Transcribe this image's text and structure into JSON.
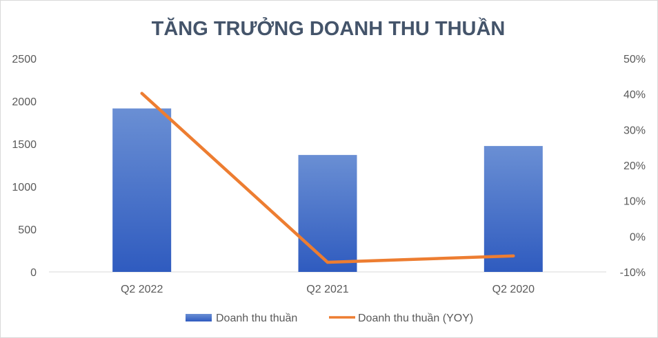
{
  "chart_data": {
    "type": "bar",
    "title": "TĂNG TRƯỞNG DOANH THU THUẦN",
    "categories": [
      "Q2 2022",
      "Q2 2021",
      "Q2 2020"
    ],
    "series": [
      {
        "name": "Doanh thu thuần",
        "type": "bar",
        "axis": "left",
        "values": [
          1915,
          1370,
          1475
        ]
      },
      {
        "name": "Doanh thu thuần (YOY)",
        "type": "line",
        "axis": "right",
        "values": [
          40.2,
          -7.3,
          -5.5
        ]
      }
    ],
    "y_left": {
      "min": 0,
      "max": 2500,
      "ticks": [
        "0",
        "500",
        "1000",
        "1500",
        "2000",
        "2500"
      ]
    },
    "y_right": {
      "min": -10,
      "max": 50,
      "ticks": [
        "-10%",
        "0%",
        "10%",
        "20%",
        "30%",
        "40%",
        "50%"
      ]
    },
    "grid": false,
    "legend": "bottom",
    "colors": {
      "bar_top": "#6a8fd4",
      "bar_bottom": "#2f5bbf",
      "line": "#ed7d31",
      "axis": "#d9d9d9"
    }
  }
}
